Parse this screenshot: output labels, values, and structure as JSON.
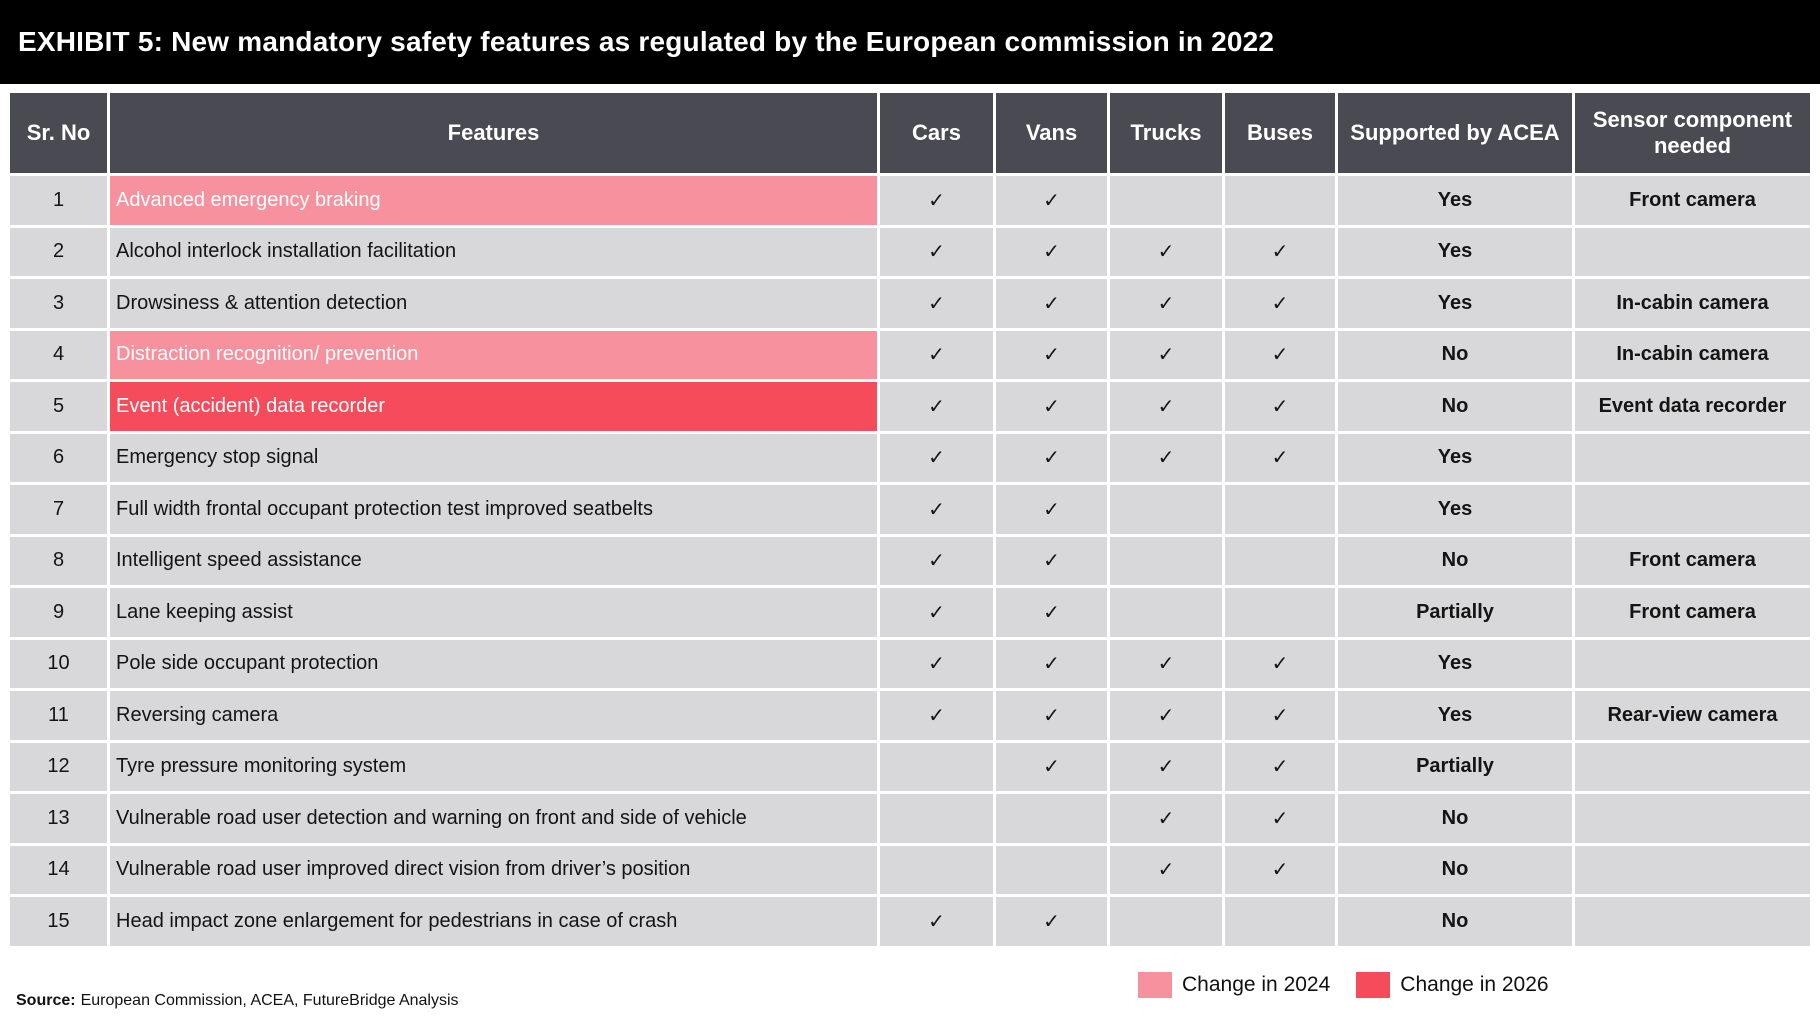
{
  "title": "EXHIBIT 5: New mandatory safety features as regulated by the European commission in 2022",
  "table": {
    "headers": [
      "Sr. No",
      "Features",
      "Cars",
      "Vans",
      "Trucks",
      "Buses",
      "Supported by ACEA",
      "Sensor component needed"
    ],
    "rows": [
      {
        "sr": "1",
        "feature": "Advanced emergency braking",
        "highlight": "change_2024",
        "checks": [
          true,
          true,
          false,
          false
        ],
        "supported_by_acea": "Yes",
        "sensor_component": "Front camera"
      },
      {
        "sr": "2",
        "feature": "Alcohol interlock installation facilitation",
        "highlight": null,
        "checks": [
          true,
          true,
          true,
          true
        ],
        "supported_by_acea": "Yes",
        "sensor_component": ""
      },
      {
        "sr": "3",
        "feature": "Drowsiness & attention detection",
        "highlight": null,
        "checks": [
          true,
          true,
          true,
          true
        ],
        "supported_by_acea": "Yes",
        "sensor_component": "In-cabin camera"
      },
      {
        "sr": "4",
        "feature": "Distraction recognition/ prevention",
        "highlight": "change_2024",
        "checks": [
          true,
          true,
          true,
          true
        ],
        "supported_by_acea": "No",
        "sensor_component": "In-cabin camera"
      },
      {
        "sr": "5",
        "feature": "Event (accident) data recorder",
        "highlight": "change_2026",
        "checks": [
          true,
          true,
          true,
          true
        ],
        "supported_by_acea": "No",
        "sensor_component": "Event data recorder"
      },
      {
        "sr": "6",
        "feature": "Emergency stop signal",
        "highlight": null,
        "checks": [
          true,
          true,
          true,
          true
        ],
        "supported_by_acea": "Yes",
        "sensor_component": ""
      },
      {
        "sr": "7",
        "feature": "Full width frontal occupant protection test improved seatbelts",
        "highlight": null,
        "checks": [
          true,
          true,
          false,
          false
        ],
        "supported_by_acea": "Yes",
        "sensor_component": ""
      },
      {
        "sr": "8",
        "feature": "Intelligent speed assistance",
        "highlight": null,
        "checks": [
          true,
          true,
          false,
          false
        ],
        "supported_by_acea": "No",
        "sensor_component": "Front camera"
      },
      {
        "sr": "9",
        "feature": "Lane keeping assist",
        "highlight": null,
        "checks": [
          true,
          true,
          false,
          false
        ],
        "supported_by_acea": "Partially",
        "sensor_component": "Front camera"
      },
      {
        "sr": "10",
        "feature": "Pole side occupant protection",
        "highlight": null,
        "checks": [
          true,
          true,
          true,
          true
        ],
        "supported_by_acea": "Yes",
        "sensor_component": ""
      },
      {
        "sr": "11",
        "feature": "Reversing camera",
        "highlight": null,
        "checks": [
          true,
          true,
          true,
          true
        ],
        "supported_by_acea": "Yes",
        "sensor_component": "Rear-view camera"
      },
      {
        "sr": "12",
        "feature": "Tyre pressure monitoring system",
        "highlight": null,
        "checks": [
          false,
          true,
          true,
          true
        ],
        "supported_by_acea": "Partially",
        "sensor_component": ""
      },
      {
        "sr": "13",
        "feature": "Vulnerable road user detection and warning on front and side of vehicle",
        "highlight": null,
        "checks": [
          false,
          false,
          true,
          true
        ],
        "supported_by_acea": "No",
        "sensor_component": ""
      },
      {
        "sr": "14",
        "feature": "Vulnerable road user improved direct vision from driver’s position",
        "highlight": null,
        "checks": [
          false,
          false,
          true,
          true
        ],
        "supported_by_acea": "No",
        "sensor_component": ""
      },
      {
        "sr": "15",
        "feature": "Head impact zone enlargement for pedestrians in case of crash",
        "highlight": null,
        "checks": [
          true,
          true,
          false,
          false
        ],
        "supported_by_acea": "No",
        "sensor_component": ""
      }
    ]
  },
  "legend": [
    {
      "label": "Change in 2024",
      "color": "#f7919e"
    },
    {
      "label": "Change in 2026",
      "color": "#f64b5b"
    }
  ],
  "source": {
    "label": "Source:",
    "text": "European Commission, ACEA, FutureBridge Analysis"
  },
  "icons": {
    "check": "✓"
  },
  "colors": {
    "title_bar_bg": "#000000",
    "header_bg": "#4a4a52",
    "row_bg": "#d8d7d9",
    "acea_sensor_bg": "#fbdce1",
    "change_2024": "#f7919e",
    "change_2026": "#f64b5b",
    "highlight_text": "#ffffff"
  }
}
